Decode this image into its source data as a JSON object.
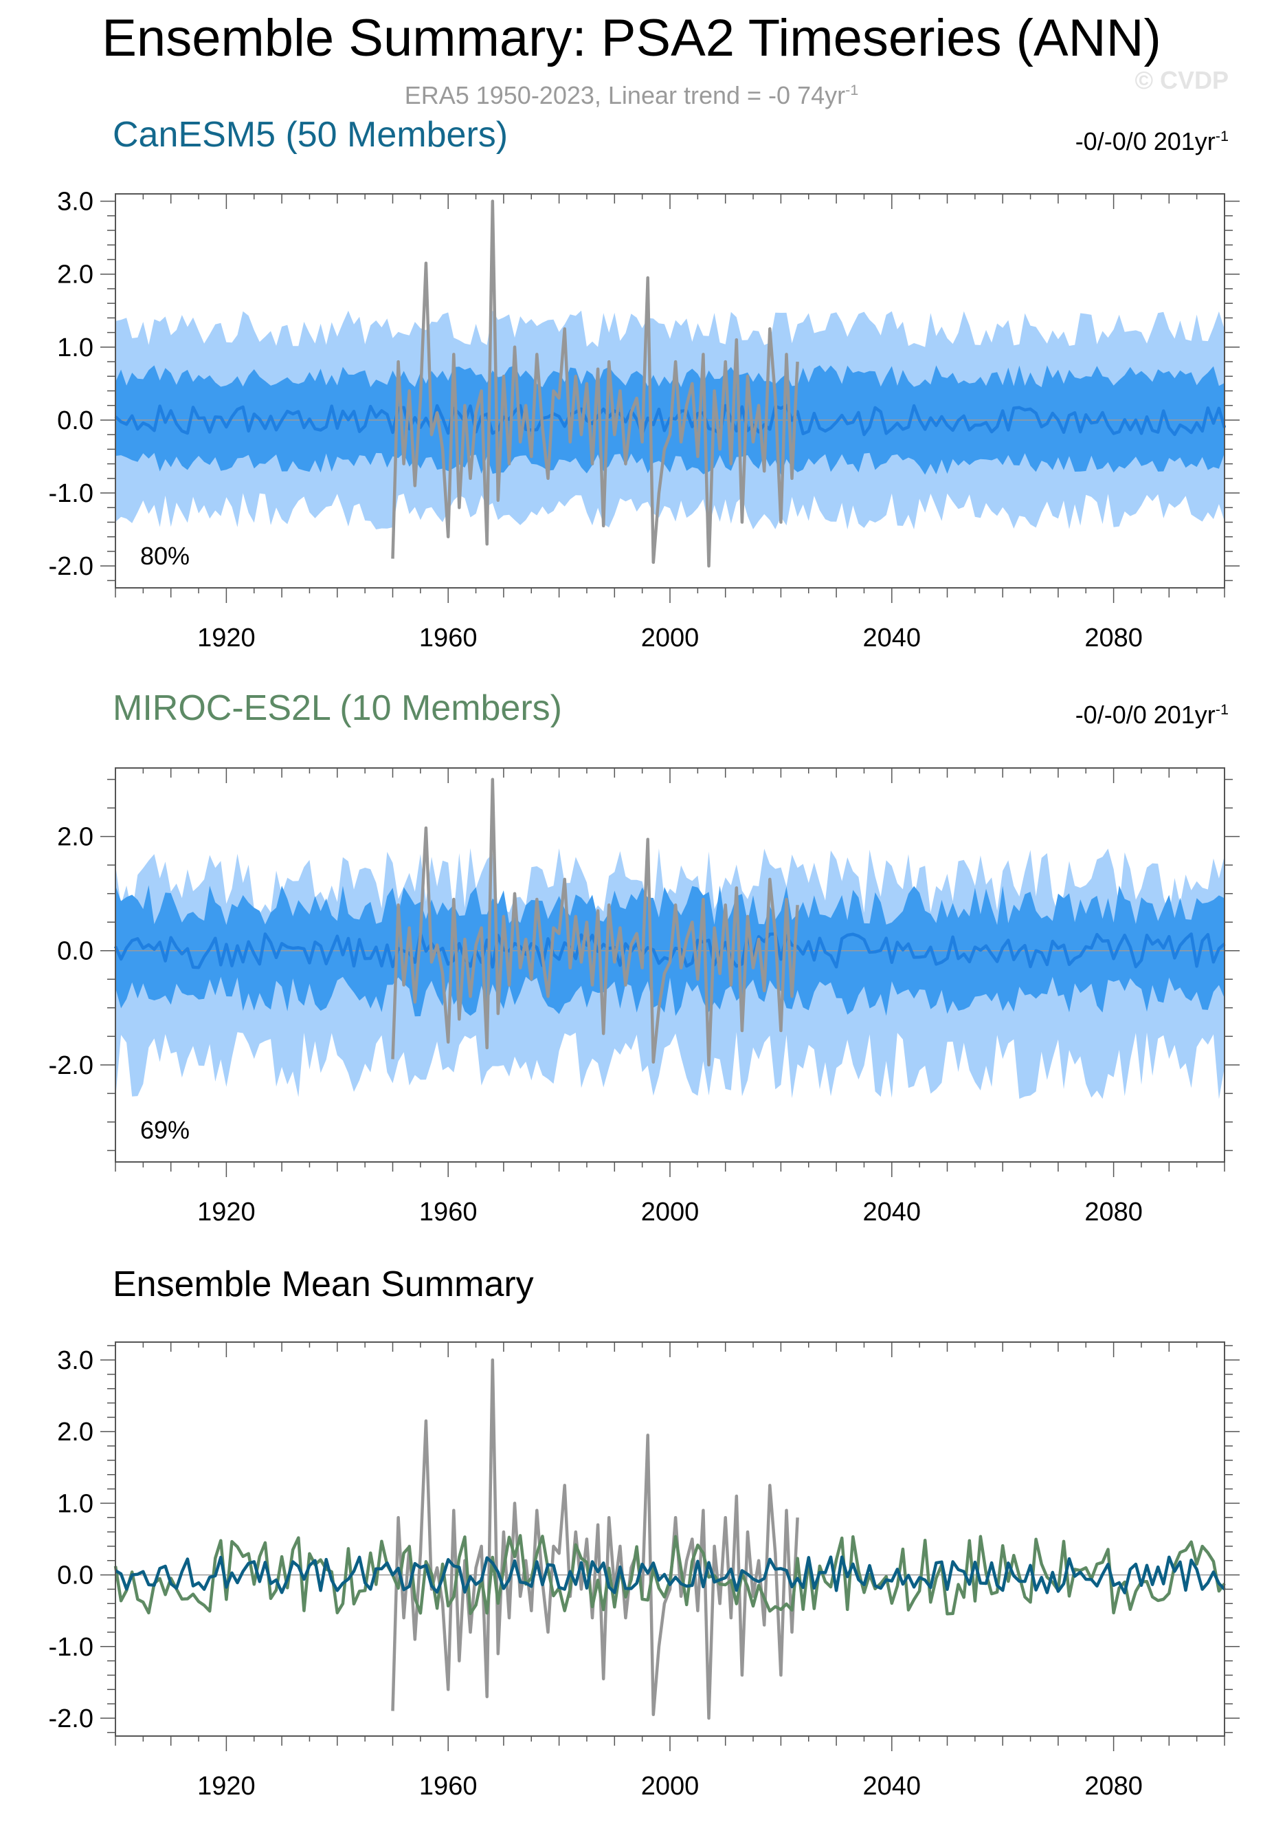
{
  "title": "Ensemble Summary: PSA2 Timeseries (ANN)",
  "subtitle": {
    "text": "ERA5 1950-2023, Linear trend = -0 74yr",
    "sup": "-1"
  },
  "watermark": "© CVDP",
  "colors": {
    "band_outer": "#a7d0fb",
    "band_inner": "#3d9bef",
    "ensemble_median": "#1f7fe0",
    "observations": "#969696",
    "canesm5_label": "#13688d",
    "canesm5_mean": "#0b5f85",
    "miroc_label": "#5d8a65",
    "miroc_mean": "#5e8a63"
  },
  "panels": [
    {
      "title": "CanESM5 (50 Members)",
      "trend": "-0/-0/0 201yr",
      "trend_sup": "-1",
      "annotation": "80%"
    },
    {
      "title": "MIROC-ES2L (10 Members)",
      "trend": "-0/-0/0 201yr",
      "trend_sup": "-1",
      "annotation": "69%"
    },
    {
      "title": "Ensemble Mean Summary",
      "trend": "",
      "trend_sup": "",
      "annotation": ""
    }
  ],
  "chart_data": [
    {
      "type": "area",
      "title": "CanESM5 (50 Members)",
      "xlim": [
        1900,
        2100
      ],
      "ylim": [
        -2.3,
        3.1
      ],
      "x_ticks": [
        "1920",
        "1960",
        "2000",
        "2040",
        "2080"
      ],
      "y_ticks": [
        "3.0",
        "2.0",
        "1.0",
        "0.0",
        "-1.0",
        "-2.0"
      ],
      "series": [
        {
          "role": "band_outer",
          "lower": -1.25,
          "upper": 1.25,
          "amplitude": 0.25
        },
        {
          "role": "band_inner",
          "lower": -0.6,
          "upper": 0.6,
          "amplitude": 0.15
        },
        {
          "role": "ensemble_median",
          "x_start": 1900,
          "x_end": 2100,
          "amplitude": 0.2
        },
        {
          "role": "observations",
          "x_start": 1950,
          "x_end": 2023,
          "values": [
            -1.9,
            0.8,
            -0.6,
            0.4,
            -0.9,
            0.3,
            2.15,
            -0.2,
            0.1,
            -0.4,
            -1.6,
            0.9,
            -1.2,
            0.2,
            -0.8,
            0.1,
            0.4,
            -1.7,
            3.0,
            -1.1,
            0.6,
            -0.6,
            1.0,
            -0.3,
            0.2,
            -0.5,
            0.9,
            -0.1,
            -0.8,
            0.4,
            0.3,
            1.25,
            -0.3,
            0.6,
            -0.2,
            0.5,
            -0.6,
            0.7,
            -1.45,
            0.8,
            -0.2,
            0.4,
            -0.6,
            0.1,
            0.3,
            -0.3,
            1.95,
            -1.95,
            -1.0,
            -0.4,
            -0.2,
            0.8,
            -0.3,
            0.2,
            0.5,
            -0.5,
            0.9,
            -2.0,
            0.4,
            -0.4,
            0.8,
            -0.6,
            1.1,
            -1.4,
            0.6,
            -0.3,
            0.2,
            -0.7,
            1.25,
            0.3,
            -1.4,
            0.9,
            -0.8,
            0.8
          ]
        }
      ]
    },
    {
      "type": "area",
      "title": "MIROC-ES2L (10 Members)",
      "xlim": [
        1900,
        2100
      ],
      "ylim": [
        -3.7,
        3.2
      ],
      "x_ticks": [
        "1920",
        "1960",
        "2000",
        "2040",
        "2080"
      ],
      "y_ticks": [
        "2.0",
        "0.0",
        "-2.0"
      ],
      "series": [
        {
          "role": "band_outer",
          "lower": -2.0,
          "upper": 1.2,
          "amplitude": 0.6
        },
        {
          "role": "band_inner",
          "lower": -0.8,
          "upper": 0.8,
          "amplitude": 0.35
        },
        {
          "role": "ensemble_median",
          "x_start": 1900,
          "x_end": 2100,
          "amplitude": 0.3
        },
        {
          "role": "observations",
          "x_start": 1950,
          "x_end": 2023,
          "same_as": "panel_1_observations"
        }
      ]
    },
    {
      "type": "line",
      "title": "Ensemble Mean Summary",
      "xlim": [
        1900,
        2100
      ],
      "ylim": [
        -2.25,
        3.25
      ],
      "x_ticks": [
        "1920",
        "1960",
        "2000",
        "2040",
        "2080"
      ],
      "y_ticks": [
        "3.0",
        "2.0",
        "1.0",
        "0.0",
        "-1.0",
        "-2.0"
      ],
      "series": [
        {
          "role": "observations",
          "x_start": 1950,
          "x_end": 2023,
          "same_as": "panel_1_observations"
        },
        {
          "role": "miroc_mean",
          "x_start": 1900,
          "x_end": 2100,
          "amplitude": 0.55
        },
        {
          "role": "canesm5_mean",
          "x_start": 1900,
          "x_end": 2100,
          "amplitude": 0.25
        }
      ]
    }
  ]
}
